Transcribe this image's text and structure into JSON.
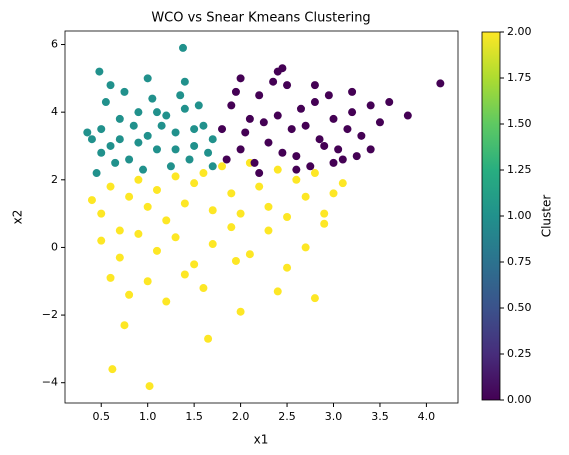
{
  "chart_data": {
    "type": "scatter",
    "title": "WCO vs Snear Kmeans Clustering",
    "x_label": "x1",
    "y_label": "x2",
    "colormap": "viridis",
    "colorbar_label": "Cluster",
    "clim": [
      0,
      2
    ],
    "colorbar_ticks": [
      {
        "value": 0,
        "label": "0.00"
      },
      {
        "value": 0.25,
        "label": "0.25"
      },
      {
        "value": 0.5,
        "label": "0.50"
      },
      {
        "value": 0.75,
        "label": "0.75"
      },
      {
        "value": 1,
        "label": "1.00"
      },
      {
        "value": 1.25,
        "label": "1.25"
      },
      {
        "value": 1.5,
        "label": "1.50"
      },
      {
        "value": 1.75,
        "label": "1.75"
      },
      {
        "value": 2,
        "label": "2.00"
      }
    ],
    "xlim": [
      0.11,
      4.34
    ],
    "ylim": [
      -4.6,
      6.4
    ],
    "xticks": [
      0.5,
      {
        "value": 1,
        "label": "1.0"
      },
      1.5,
      {
        "value": 2,
        "label": "2.0"
      },
      2.5,
      {
        "value": 3,
        "label": "3.0"
      },
      3.5,
      {
        "value": 4,
        "label": "4.0"
      }
    ],
    "yticks": [
      {
        "value": -4,
        "label": "−4"
      },
      {
        "value": -2,
        "label": "−2"
      },
      0,
      2,
      4,
      6
    ],
    "series": [
      {
        "c": 1,
        "x": [
          0.4,
          0.5,
          0.6,
          0.7,
          0.8,
          0.9,
          1.0,
          1.1,
          1.2,
          1.3,
          1.4,
          1.5,
          1.6,
          1.7,
          0.45,
          0.55,
          0.65,
          0.75,
          0.85,
          0.95,
          1.05,
          1.15,
          1.25,
          1.35,
          1.45,
          1.55,
          1.65,
          0.5,
          0.7,
          0.9,
          1.1,
          1.3,
          1.5,
          1.7,
          0.35,
          0.6,
          1.0,
          1.4,
          1.38,
          0.48
        ],
        "y": [
          3.2,
          3.5,
          3.0,
          3.8,
          2.6,
          4.0,
          3.3,
          2.9,
          3.9,
          3.4,
          4.1,
          3.0,
          3.6,
          3.2,
          2.2,
          4.3,
          2.5,
          4.6,
          3.6,
          2.3,
          4.4,
          3.6,
          2.4,
          4.5,
          2.6,
          4.2,
          2.8,
          2.8,
          3.2,
          3.1,
          4.0,
          2.9,
          3.5,
          2.4,
          3.4,
          4.8,
          5.0,
          4.9,
          5.9,
          5.2
        ]
      },
      {
        "c": 2,
        "x": [
          0.4,
          0.5,
          0.6,
          0.7,
          0.8,
          0.9,
          1.0,
          1.1,
          1.2,
          1.3,
          1.4,
          1.5,
          1.6,
          1.7,
          1.8,
          1.9,
          2.0,
          2.1,
          2.2,
          2.3,
          2.4,
          2.5,
          2.6,
          2.7,
          2.8,
          2.9,
          3.0,
          3.1,
          0.5,
          0.7,
          0.9,
          1.1,
          1.3,
          1.5,
          1.7,
          1.9,
          2.1,
          2.3,
          2.5,
          2.7,
          2.9,
          0.6,
          0.8,
          1.0,
          1.2,
          1.4,
          1.6,
          2.0,
          2.4,
          2.8,
          0.62,
          1.02,
          0.75,
          1.65,
          1.95
        ],
        "y": [
          1.4,
          1.0,
          1.8,
          0.5,
          1.5,
          2.0,
          1.2,
          1.7,
          0.8,
          2.1,
          1.3,
          1.9,
          2.2,
          1.1,
          2.4,
          1.6,
          1.0,
          2.5,
          1.8,
          1.2,
          2.3,
          0.9,
          2.0,
          1.5,
          2.2,
          1.0,
          1.6,
          1.9,
          0.2,
          -0.3,
          0.4,
          -0.1,
          0.3,
          -0.5,
          0.1,
          0.6,
          -0.2,
          0.5,
          -0.6,
          0.0,
          0.7,
          -0.9,
          -1.4,
          -1.0,
          -1.6,
          -0.8,
          -1.2,
          -1.9,
          -1.3,
          -1.5,
          -3.6,
          -4.1,
          -2.3,
          -2.7,
          -0.4
        ]
      },
      {
        "c": 0,
        "x": [
          1.8,
          1.9,
          2.0,
          2.1,
          2.2,
          2.3,
          2.4,
          2.5,
          2.6,
          2.7,
          2.8,
          2.9,
          3.0,
          3.1,
          3.2,
          3.3,
          3.4,
          3.5,
          1.85,
          1.95,
          2.05,
          2.15,
          2.25,
          2.35,
          2.45,
          2.55,
          2.65,
          2.75,
          2.85,
          2.95,
          3.05,
          3.15,
          3.25,
          2.0,
          2.4,
          2.8,
          3.2,
          3.6,
          3.8,
          4.15,
          2.2,
          2.6,
          3.0,
          3.4,
          2.45
        ],
        "y": [
          3.5,
          4.2,
          2.9,
          3.8,
          4.5,
          3.1,
          3.9,
          4.8,
          2.7,
          3.6,
          4.3,
          3.0,
          3.8,
          2.6,
          4.0,
          3.3,
          2.9,
          3.7,
          2.6,
          4.6,
          3.4,
          2.5,
          3.7,
          4.9,
          2.8,
          3.5,
          4.1,
          2.4,
          3.2,
          4.5,
          2.9,
          3.5,
          2.7,
          5.0,
          5.2,
          4.8,
          4.6,
          4.3,
          3.9,
          4.85,
          2.2,
          2.3,
          2.5,
          4.2,
          5.3
        ]
      }
    ]
  }
}
